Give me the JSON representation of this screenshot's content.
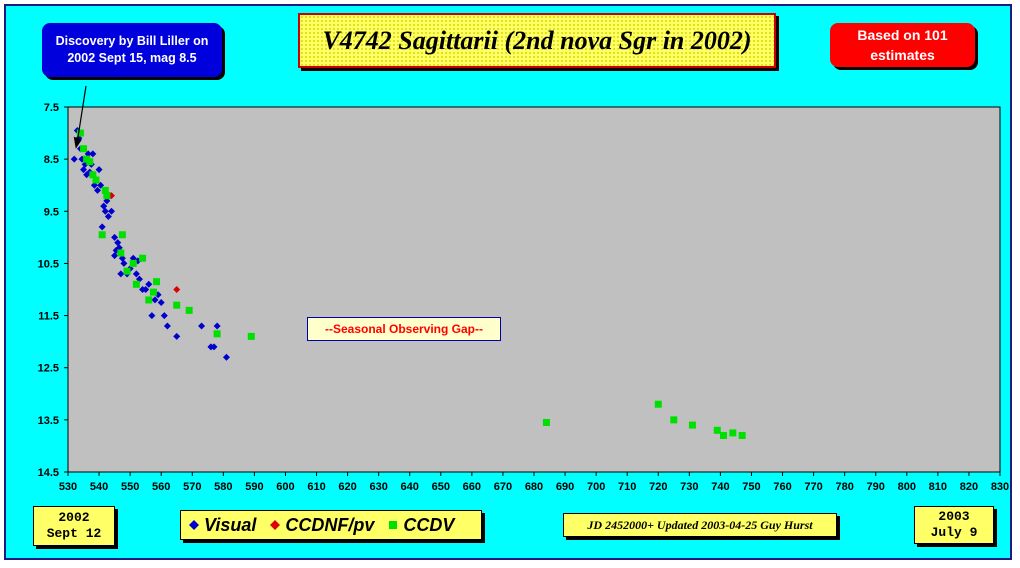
{
  "title": "V4742 Sagittarii (2nd nova Sgr in 2002)",
  "discovery_note": "Discovery by Bill Liller on\n2002 Sept 15, mag 8.5",
  "estimates_note": "Based on 101\nestimates",
  "start_date": "2002\nSept 12",
  "end_date": "2003\nJuly 9",
  "footnote": "JD 2452000+ Updated 2003-04-25 Guy Hurst",
  "gap_note": "--Seasonal Observing Gap--",
  "legend": [
    {
      "label": "Visual",
      "color": "#0000cc",
      "icon": "diamond-icon"
    },
    {
      "label": "CCDNF/pv",
      "color": "#dd0000",
      "icon": "diamond-icon"
    },
    {
      "label": "CCDV",
      "color": "#00e000",
      "icon": "square-icon"
    }
  ],
  "colors": {
    "background": "#00ffff",
    "plot_area": "#c0c0c0",
    "title_box": "#ffff66"
  },
  "chart_data": {
    "type": "scatter",
    "title": "V4742 Sagittarii (2nd nova Sgr in 2002)",
    "xlabel": "",
    "ylabel": "",
    "xlim": [
      530,
      830
    ],
    "ylim": [
      7.5,
      14.5
    ],
    "y_inverted": true,
    "grid": false,
    "legend_position": "bottom",
    "x_ticks": [
      530,
      540,
      550,
      560,
      570,
      580,
      590,
      600,
      610,
      620,
      630,
      640,
      650,
      660,
      670,
      680,
      690,
      700,
      710,
      720,
      730,
      740,
      750,
      760,
      770,
      780,
      790,
      800,
      810,
      820,
      830
    ],
    "y_ticks": [
      7.5,
      8.5,
      9.5,
      10.5,
      11.5,
      12.5,
      13.5,
      14.5
    ],
    "annotation": {
      "text": "Discovery by Bill Liller on 2002 Sept 15, mag 8.5",
      "x": 532.5,
      "y": 8.3
    },
    "series": [
      {
        "name": "Visual",
        "marker": "diamond",
        "color": "#0000cc",
        "points": [
          [
            532,
            8.5
          ],
          [
            533,
            7.95
          ],
          [
            533.5,
            8.1
          ],
          [
            534,
            8.3
          ],
          [
            534.5,
            8.5
          ],
          [
            535,
            8.7
          ],
          [
            535.5,
            8.6
          ],
          [
            536,
            8.8
          ],
          [
            536.5,
            8.4
          ],
          [
            537,
            8.75
          ],
          [
            537.5,
            8.6
          ],
          [
            538,
            8.4
          ],
          [
            538.5,
            9.0
          ],
          [
            539,
            8.9
          ],
          [
            539.5,
            9.1
          ],
          [
            540,
            8.7
          ],
          [
            540.5,
            9.0
          ],
          [
            541,
            9.8
          ],
          [
            541.5,
            9.4
          ],
          [
            542,
            9.5
          ],
          [
            542.5,
            9.3
          ],
          [
            543,
            9.6
          ],
          [
            543.5,
            9.2
          ],
          [
            544,
            9.5
          ],
          [
            545,
            10.0
          ],
          [
            545,
            10.35
          ],
          [
            545.5,
            10.25
          ],
          [
            546,
            10.1
          ],
          [
            546.5,
            10.2
          ],
          [
            547,
            10.7
          ],
          [
            547.5,
            10.4
          ],
          [
            548,
            10.5
          ],
          [
            549,
            10.7
          ],
          [
            550,
            10.6
          ],
          [
            551,
            10.4
          ],
          [
            552,
            10.7
          ],
          [
            552.5,
            10.45
          ],
          [
            553,
            10.8
          ],
          [
            554,
            11.0
          ],
          [
            555,
            11.0
          ],
          [
            556,
            10.9
          ],
          [
            557,
            11.5
          ],
          [
            558,
            11.2
          ],
          [
            559,
            11.1
          ],
          [
            560,
            11.25
          ],
          [
            561,
            11.5
          ],
          [
            562,
            11.7
          ],
          [
            565,
            11.9
          ],
          [
            573,
            11.7
          ],
          [
            576,
            12.1
          ],
          [
            577,
            12.1
          ],
          [
            578,
            11.7
          ],
          [
            581,
            12.3
          ]
        ]
      },
      {
        "name": "CCDNF/pv",
        "marker": "diamond",
        "color": "#dd0000",
        "points": [
          [
            544,
            9.2
          ],
          [
            565,
            11.0
          ]
        ]
      },
      {
        "name": "CCDV",
        "marker": "square",
        "color": "#00e000",
        "points": [
          [
            534,
            8.0
          ],
          [
            535,
            8.3
          ],
          [
            536,
            8.5
          ],
          [
            537,
            8.55
          ],
          [
            538,
            8.8
          ],
          [
            539,
            8.9
          ],
          [
            541,
            9.95
          ],
          [
            542,
            9.1
          ],
          [
            542.5,
            9.2
          ],
          [
            547,
            10.3
          ],
          [
            547.5,
            9.95
          ],
          [
            549,
            10.65
          ],
          [
            551,
            10.5
          ],
          [
            552,
            10.9
          ],
          [
            554,
            10.4
          ],
          [
            556,
            11.2
          ],
          [
            557.5,
            11.05
          ],
          [
            558.5,
            10.85
          ],
          [
            565,
            11.3
          ],
          [
            569,
            11.4
          ],
          [
            578,
            11.85
          ],
          [
            589,
            11.9
          ],
          [
            684,
            13.55
          ],
          [
            720,
            13.2
          ],
          [
            725,
            13.5
          ],
          [
            731,
            13.6
          ],
          [
            739,
            13.7
          ],
          [
            741,
            13.8
          ],
          [
            744,
            13.75
          ],
          [
            747,
            13.8
          ]
        ]
      }
    ]
  }
}
